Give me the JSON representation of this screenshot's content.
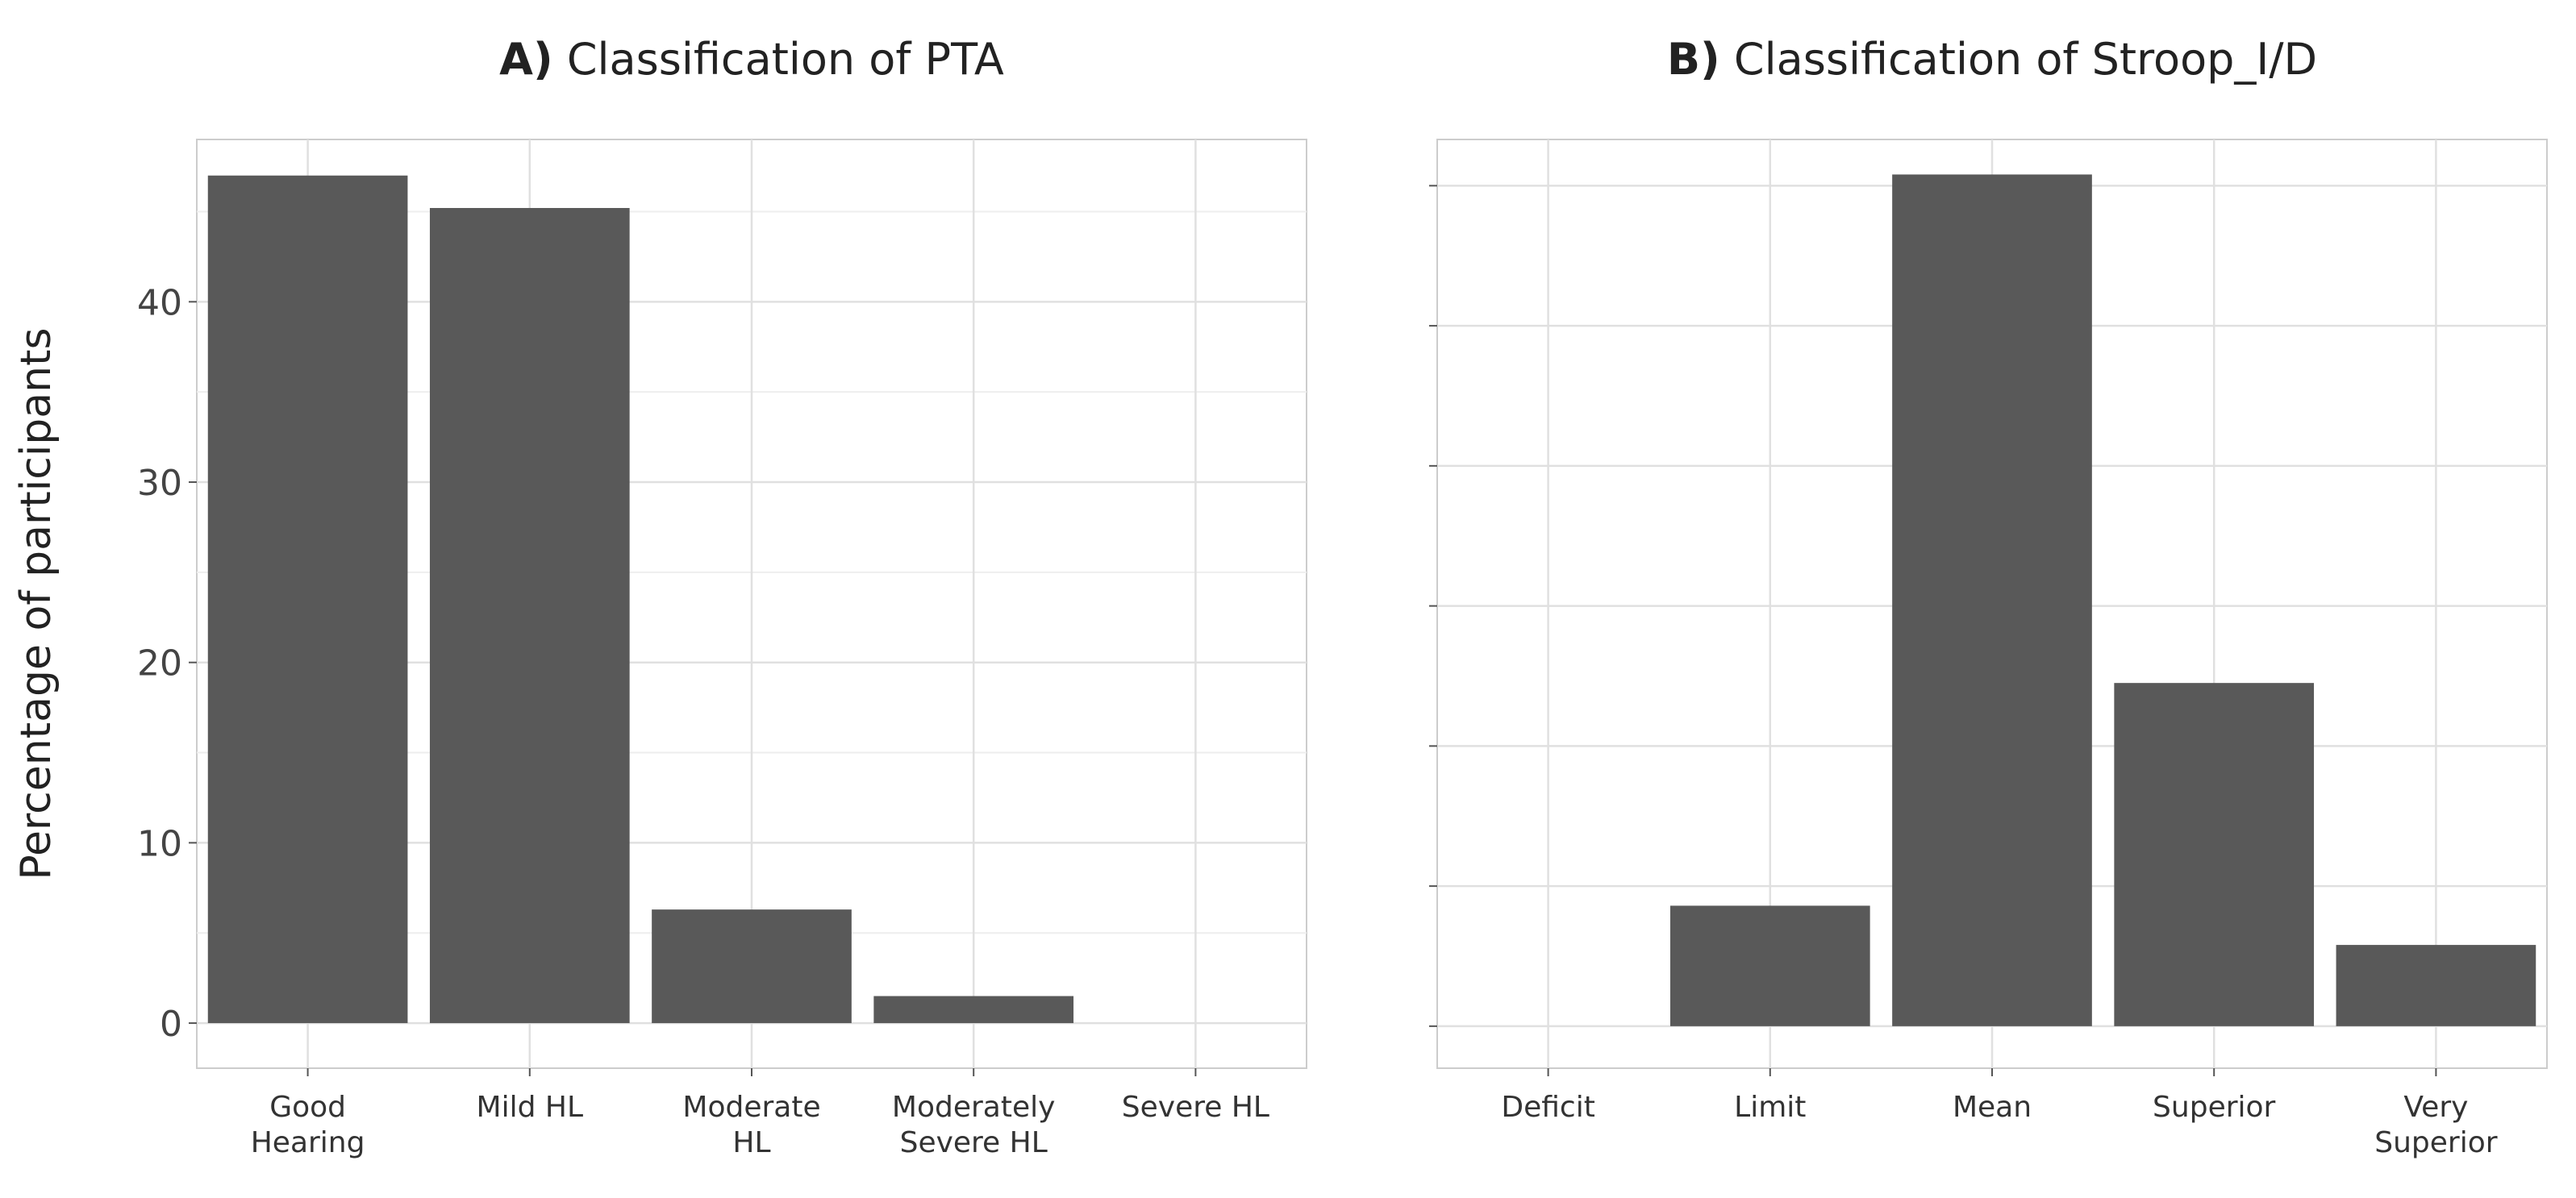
{
  "chart_data": [
    {
      "type": "bar",
      "panel_label": "A)",
      "title": "Classification of PTA",
      "y_label": "Percentage of participants",
      "categories": [
        "Good Hearing",
        "Mild HL",
        "Moderate HL",
        "Moderately Severe HL",
        "Severe HL"
      ],
      "values": [
        47,
        45.2,
        6.3,
        1.5,
        0
      ],
      "color": "#595959",
      "ylim": [
        -2.5,
        49
      ],
      "yticks": [
        0,
        10,
        20,
        30,
        40
      ],
      "minor_yticks": [
        5,
        15,
        25,
        35,
        45
      ],
      "show_ytick_labels": true,
      "grid": true
    },
    {
      "type": "bar",
      "panel_label": "B)",
      "title": "Classification of Stroop_I/D",
      "categories": [
        "Deficit",
        "Limit",
        "Mean",
        "Superior",
        "Very Superior"
      ],
      "values": [
        0,
        8.6,
        60.8,
        24.5,
        5.8
      ],
      "color": "#595959",
      "ylim": [
        -3,
        63.3
      ],
      "yticks": [
        0,
        10,
        20,
        30,
        40,
        50,
        60
      ],
      "show_ytick_labels": false,
      "grid": true
    }
  ]
}
